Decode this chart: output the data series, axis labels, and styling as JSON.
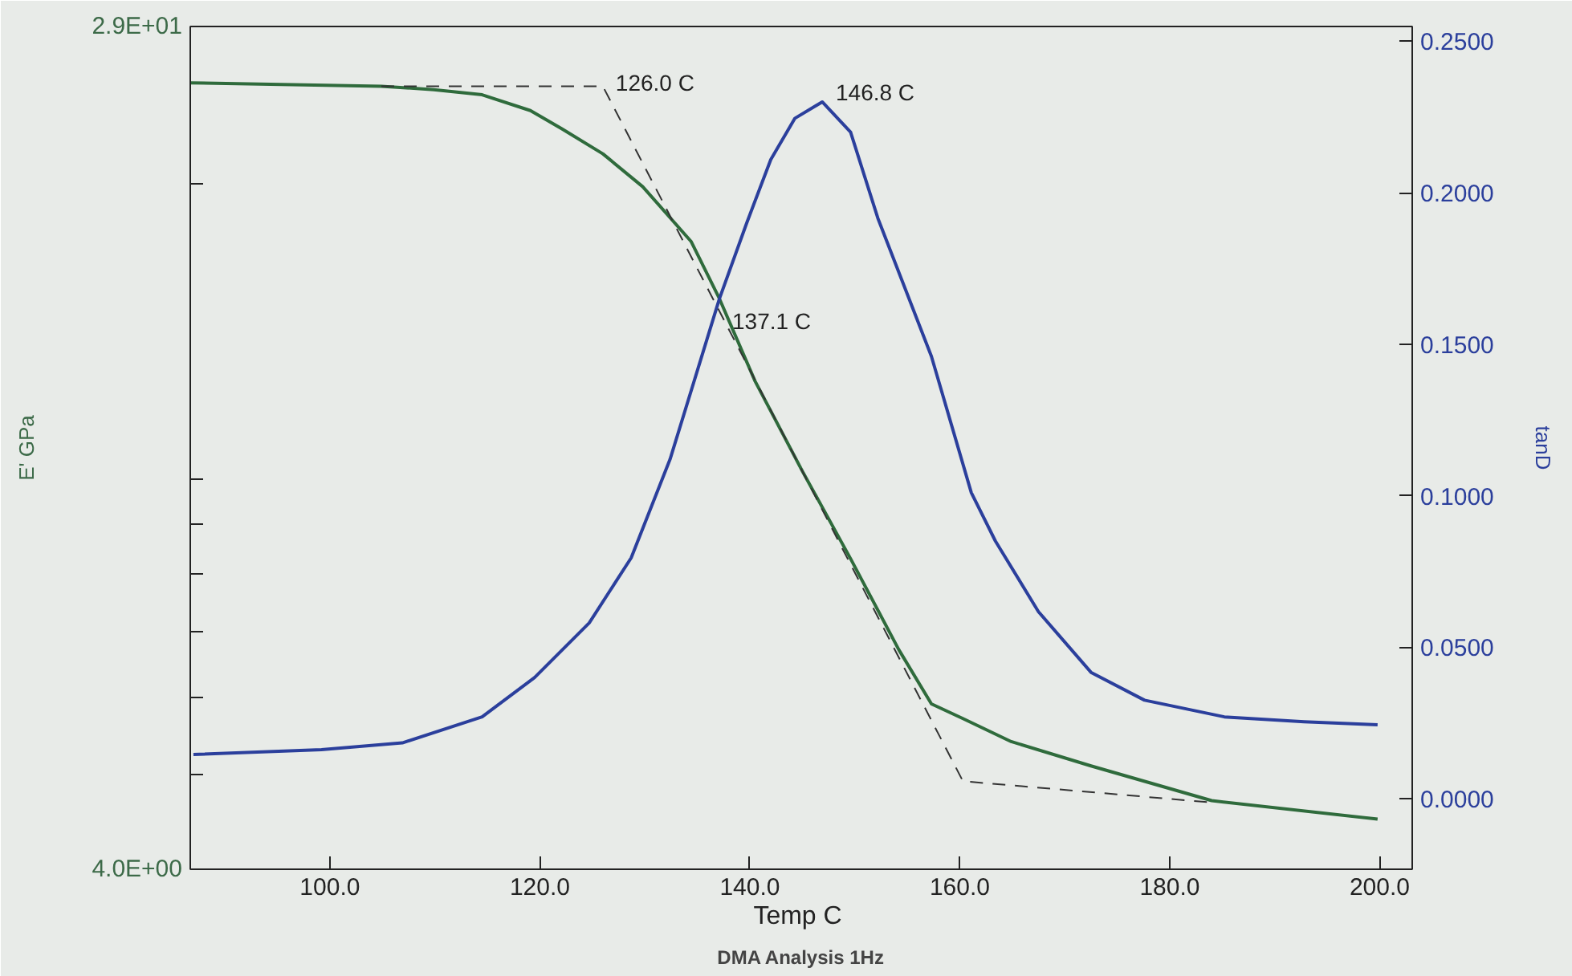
{
  "chart_data": {
    "type": "line",
    "title": "DMA Analysis 1Hz",
    "xlabel": "Temp  C",
    "ylabel": "E' GPa",
    "y2label": "tanD",
    "log": "y",
    "xlim": [
      86.7,
      203.1
    ],
    "xticks": [
      {
        "value": 100,
        "label": "100.0"
      },
      {
        "value": 120,
        "label": "120.0"
      },
      {
        "value": 140,
        "label": "140.0"
      },
      {
        "value": 160,
        "label": "160.0"
      },
      {
        "value": 180,
        "label": "180.0"
      },
      {
        "value": 200,
        "label": "200.0"
      }
    ],
    "ylim": [
      4.0,
      29.0
    ],
    "yticks": [
      {
        "value": 4,
        "label": "4.0E+00"
      },
      {
        "value": 5,
        "label": null
      },
      {
        "value": 6,
        "label": null
      },
      {
        "value": 7,
        "label": null
      },
      {
        "value": 8,
        "label": null
      },
      {
        "value": 9,
        "label": null
      },
      {
        "value": 10,
        "label": null
      },
      {
        "value": 20,
        "label": null
      },
      {
        "value": 29,
        "label": "2.9E+01"
      }
    ],
    "y2lim": [
      -0.0233,
      0.2549
    ],
    "y2ticks": [
      {
        "value": 0,
        "label": "0.0000"
      },
      {
        "value": 0.05,
        "label": "0.0500"
      },
      {
        "value": 0.1,
        "label": "0.1000"
      },
      {
        "value": 0.15,
        "label": "0.1500"
      },
      {
        "value": 0.2,
        "label": "0.2000"
      },
      {
        "value": 0.25,
        "label": "0.2500"
      }
    ],
    "series": [
      {
        "color": "#2f6b3c",
        "line_style": "solid",
        "x": [
          86.7,
          104.9,
          109.9,
          114.5,
          119.1,
          122.1,
          126.0,
          129.8,
          134.4,
          137.1,
          140.5,
          145.0,
          149.6,
          154.2,
          157.3,
          160.3,
          164.9,
          172.5,
          184.0,
          199.8
        ],
        "values": [
          25.4,
          25.2,
          25.0,
          24.7,
          23.8,
          22.8,
          21.5,
          19.9,
          17.5,
          15.3,
          12.6,
          10.2,
          8.3,
          6.7,
          5.9,
          5.7,
          5.4,
          5.1,
          4.7,
          4.5
        ]
      },
      {
        "color": "#2b3f9c",
        "line_style": "solid",
        "axis": "y2",
        "x": [
          87.0,
          99.2,
          106.9,
          114.5,
          119.5,
          124.7,
          128.7,
          132.4,
          134.8,
          137.1,
          139.7,
          142.0,
          144.3,
          146.9,
          149.6,
          152.2,
          157.3,
          161.1,
          163.4,
          167.5,
          172.5,
          177.6,
          185.2,
          192.8,
          199.8
        ],
        "values": [
          0.0146,
          0.0162,
          0.0184,
          0.027,
          0.04,
          0.058,
          0.0795,
          0.112,
          0.139,
          0.165,
          0.19,
          0.211,
          0.2246,
          0.23,
          0.22,
          0.1916,
          0.146,
          0.101,
          0.085,
          0.0617,
          0.0417,
          0.0325,
          0.027,
          0.0254,
          0.0244
        ]
      },
      {
        "color": "#333333",
        "line_style": "dashed",
        "x": [
          104.9,
          126.0,
          160.3,
          184.0
        ],
        "values": [
          25.2,
          25.2,
          4.92,
          4.68
        ]
      }
    ],
    "annotations": [
      {
        "text": "126.0 C",
        "x": 126.0,
        "y": 25.2
      },
      {
        "text": "137.1 C",
        "x": 137.1,
        "y": 15.3
      },
      "146.8 C"
    ]
  }
}
